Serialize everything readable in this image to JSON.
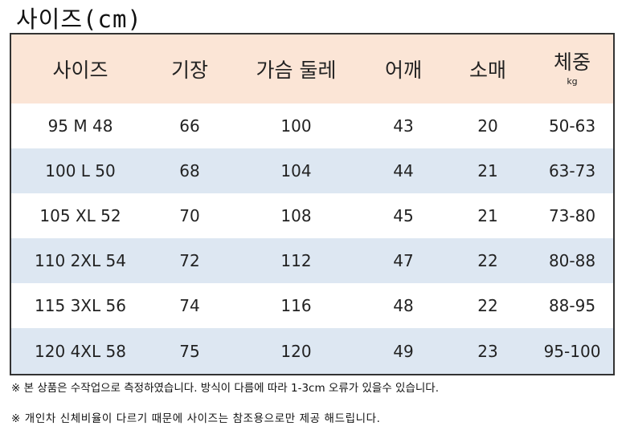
{
  "title": "사이즈(cm)",
  "header": {
    "size": "사이즈",
    "length": "기장",
    "chest": "가슴 둘레",
    "shoulder": "어깨",
    "sleeve": "소매",
    "weight": "체중",
    "weight_unit": "kg"
  },
  "rows": [
    {
      "size": "95 M 48",
      "length": "66",
      "chest": "100",
      "shoulder": "43",
      "sleeve": "20",
      "weight": "50-63"
    },
    {
      "size": "100 L 50",
      "length": "68",
      "chest": "104",
      "shoulder": "44",
      "sleeve": "21",
      "weight": "63-73"
    },
    {
      "size": "105 XL 52",
      "length": "70",
      "chest": "108",
      "shoulder": "45",
      "sleeve": "21",
      "weight": "73-80"
    },
    {
      "size": "110 2XL 54",
      "length": "72",
      "chest": "112",
      "shoulder": "47",
      "sleeve": "22",
      "weight": "80-88"
    },
    {
      "size": "115 3XL 56",
      "length": "74",
      "chest": "116",
      "shoulder": "48",
      "sleeve": "22",
      "weight": "88-95"
    },
    {
      "size": "120 4XL 58",
      "length": "75",
      "chest": "120",
      "shoulder": "49",
      "sleeve": "23",
      "weight": "95-100"
    }
  ],
  "notes": [
    "※ 본 상품은 수작업으로 측정하였습니다. 방식이 다름에 따라  1-3cm 오류가 있을수 있습니다.",
    "※ 개인차 신체비율이 다르기 때문에 사이즈는 참조용으로만 제공 해드립니다."
  ],
  "colors": {
    "header_bg": "#fbe5d6",
    "band_bg": "#dde7f2"
  }
}
